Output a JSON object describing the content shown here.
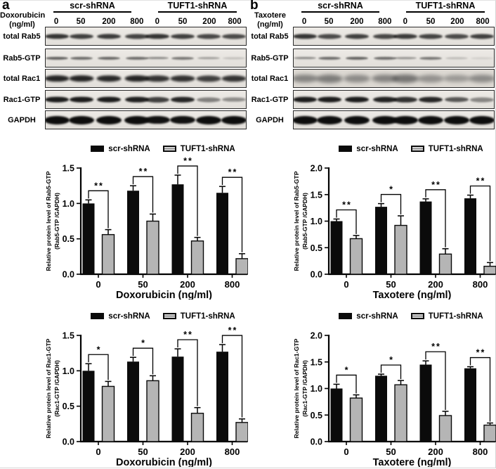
{
  "legend": {
    "items": [
      {
        "key": "scr",
        "label": "scr-shRNA",
        "fill": "#0b0b0b"
      },
      {
        "key": "tuft",
        "label": "TUFT1-shRNA",
        "fill": "#b5b5b5"
      }
    ]
  },
  "colors": {
    "scr_bar": "#0b0b0b",
    "tuft_bar": "#b5b5b5",
    "bar_border": "#0b0b0b",
    "axis": "#000000",
    "band": "#151515"
  },
  "panels": [
    {
      "letter": "a",
      "drug": "Doxorubicin",
      "drug_unit": "(ng/ml)",
      "groups": [
        "scr-shRNA",
        "TUFT1-shRNA"
      ],
      "doses": [
        "0",
        "50",
        "200",
        "800",
        "0",
        "50",
        "200",
        "800"
      ],
      "blot_rows": [
        {
          "label": "total Rab5",
          "band_height": 8,
          "band_width": 34,
          "blur": 1.3,
          "color": "#161616",
          "intensities": [
            0.85,
            0.8,
            0.82,
            0.78,
            0.85,
            0.8,
            0.76,
            0.75
          ]
        },
        {
          "label": "Rab5-GTP",
          "band_height": 5,
          "band_width": 32,
          "blur": 1.1,
          "color": "#1c1c1c",
          "intensities": [
            0.65,
            0.6,
            0.62,
            0.6,
            0.45,
            0.55,
            0.35,
            0.18
          ]
        },
        {
          "label": "total Rac1",
          "band_height": 10,
          "band_width": 35,
          "blur": 1.5,
          "color": "#141414",
          "intensities": [
            0.92,
            0.92,
            0.9,
            0.92,
            0.85,
            0.86,
            0.8,
            0.85
          ]
        },
        {
          "label": "Rac1-GTP",
          "band_height": 9,
          "band_width": 34,
          "blur": 1.3,
          "color": "#121212",
          "intensities": [
            0.95,
            0.95,
            0.95,
            0.93,
            0.78,
            0.9,
            0.48,
            0.42
          ]
        },
        {
          "label": "GAPDH",
          "band_height": 12,
          "band_width": 36,
          "blur": 1.3,
          "color": "#0d0d0d",
          "intensities": [
            1,
            1,
            1,
            1,
            0.98,
            0.98,
            1,
            1
          ]
        }
      ]
    },
    {
      "letter": "b",
      "drug": "Taxotere",
      "drug_unit": "(ng/ml)",
      "groups": [
        "scr-shRNA",
        "TUFT1-shRNA"
      ],
      "doses": [
        "0",
        "50",
        "200",
        "800",
        "0",
        "50",
        "200",
        "800"
      ],
      "blot_rows": [
        {
          "label": "total Rab5",
          "band_height": 8,
          "band_width": 34,
          "blur": 1.3,
          "color": "#161616",
          "intensities": [
            0.85,
            0.75,
            0.8,
            0.76,
            0.82,
            0.78,
            0.75,
            0.8
          ]
        },
        {
          "label": "Rab5-GTP",
          "band_height": 5,
          "band_width": 32,
          "blur": 1.1,
          "color": "#1c1c1c",
          "intensities": [
            0.45,
            0.6,
            0.65,
            0.6,
            0.4,
            0.55,
            0.2,
            0.1
          ]
        },
        {
          "label": "total Rac1",
          "band_height": 14,
          "band_width": 38,
          "blur": 2.6,
          "color": "#4a4a4a",
          "bg": "#dcd8d2",
          "intensities": [
            0.6,
            0.65,
            0.55,
            0.6,
            0.7,
            0.5,
            0.45,
            0.55
          ]
        },
        {
          "label": "Rac1-GTP",
          "band_height": 9,
          "band_width": 34,
          "blur": 1.3,
          "color": "#121212",
          "intensities": [
            0.95,
            0.95,
            0.95,
            0.92,
            0.85,
            0.9,
            0.68,
            0.45
          ]
        },
        {
          "label": "GAPDH",
          "band_height": 12,
          "band_width": 36,
          "blur": 1.3,
          "color": "#0d0d0d",
          "intensities": [
            1,
            1,
            1,
            1,
            1,
            1,
            1,
            1
          ]
        }
      ]
    }
  ],
  "chart_data": [
    {
      "type": "bar",
      "panel": "a",
      "position": "top",
      "categories": [
        "0",
        "50",
        "200",
        "800"
      ],
      "series": [
        {
          "name": "scr-shRNA",
          "values": [
            1.0,
            1.18,
            1.27,
            1.15
          ],
          "errors": [
            0.05,
            0.07,
            0.13,
            0.09
          ]
        },
        {
          "name": "TUFT1-shRNA",
          "values": [
            0.56,
            0.75,
            0.47,
            0.22
          ],
          "errors": [
            0.07,
            0.1,
            0.05,
            0.07
          ]
        }
      ],
      "significance": [
        "**",
        "**",
        "**",
        "**"
      ],
      "title": "",
      "ylabel_line1": "Relative protein level of Rab5-GTP",
      "ylabel_line2": "(Rab5-GTP /GAPDH)",
      "xlabel": "Doxorubicin (ng/ml)",
      "ylim": [
        0,
        1.5
      ],
      "yticks": [
        0,
        0.5,
        1.0,
        1.5
      ],
      "grid": false,
      "legend_position": "top"
    },
    {
      "type": "bar",
      "panel": "a",
      "position": "bottom",
      "categories": [
        "0",
        "50",
        "200",
        "800"
      ],
      "series": [
        {
          "name": "scr-shRNA",
          "values": [
            1.0,
            1.13,
            1.2,
            1.27
          ],
          "errors": [
            0.1,
            0.06,
            0.11,
            0.1
          ]
        },
        {
          "name": "TUFT1-shRNA",
          "values": [
            0.78,
            0.86,
            0.4,
            0.27
          ],
          "errors": [
            0.07,
            0.07,
            0.08,
            0.05
          ]
        }
      ],
      "significance": [
        "*",
        "*",
        "**",
        "**"
      ],
      "title": "",
      "ylabel_line1": "Relative protein level of Rac1-GTP",
      "ylabel_line2": "(Rac1-GTP /GAPDH)",
      "xlabel": "Doxorubicin (ng/ml)",
      "ylim": [
        0,
        1.5
      ],
      "yticks": [
        0,
        0.5,
        1.0,
        1.5
      ],
      "grid": false,
      "legend_position": "top"
    },
    {
      "type": "bar",
      "panel": "b",
      "position": "top",
      "categories": [
        "0",
        "50",
        "200",
        "800"
      ],
      "series": [
        {
          "name": "scr-shRNA",
          "values": [
            1.0,
            1.27,
            1.37,
            1.43
          ],
          "errors": [
            0.04,
            0.06,
            0.05,
            0.06
          ]
        },
        {
          "name": "TUFT1-shRNA",
          "values": [
            0.67,
            0.92,
            0.38,
            0.15
          ],
          "errors": [
            0.06,
            0.18,
            0.1,
            0.07
          ]
        }
      ],
      "significance": [
        "**",
        "*",
        "**",
        "**"
      ],
      "title": "",
      "ylabel_line1": "Relative protein level of Rab5-GTP",
      "ylabel_line2": "(Rab5-GTP /GAPDH)",
      "xlabel": "Taxotere (ng/ml)",
      "ylim": [
        0,
        2.0
      ],
      "yticks": [
        0,
        0.5,
        1.0,
        1.5,
        2.0
      ],
      "grid": false,
      "legend_position": "top"
    },
    {
      "type": "bar",
      "panel": "b",
      "position": "bottom",
      "categories": [
        "0",
        "50",
        "200",
        "800"
      ],
      "series": [
        {
          "name": "scr-shRNA",
          "values": [
            1.0,
            1.24,
            1.45,
            1.38
          ],
          "errors": [
            0.08,
            0.03,
            0.07,
            0.03
          ]
        },
        {
          "name": "TUFT1-shRNA",
          "values": [
            0.82,
            1.07,
            0.49,
            0.31
          ],
          "errors": [
            0.06,
            0.08,
            0.08,
            0.04
          ]
        }
      ],
      "significance": [
        "*",
        "*",
        "**",
        "**"
      ],
      "title": "",
      "ylabel_line1": "Relative protein level of Rac1-GTP",
      "ylabel_line2": "(Rac1-GTP /GAPDH)",
      "xlabel": "Taxotere (ng/ml)",
      "ylim": [
        0,
        2.0
      ],
      "yticks": [
        0,
        0.5,
        1.0,
        1.5,
        2.0
      ],
      "grid": false,
      "legend_position": "top"
    }
  ]
}
